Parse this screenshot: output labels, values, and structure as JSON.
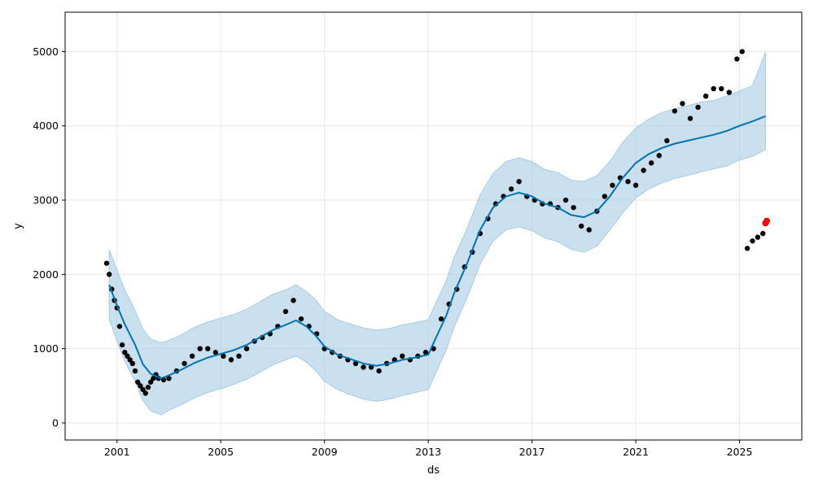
{
  "chart_data": {
    "type": "line",
    "title": "",
    "xlabel": "ds",
    "ylabel": "y",
    "xlim": [
      1999.0,
      2027.4
    ],
    "ylim": [
      -230,
      5530
    ],
    "x_ticks": [
      {
        "value": 2001,
        "label": "2001"
      },
      {
        "value": 2005,
        "label": "2005"
      },
      {
        "value": 2009,
        "label": "2009"
      },
      {
        "value": 2013,
        "label": "2013"
      },
      {
        "value": 2017,
        "label": "2017"
      },
      {
        "value": 2021,
        "label": "2021"
      },
      {
        "value": 2025,
        "label": "2025"
      }
    ],
    "y_ticks": [
      {
        "value": 0,
        "label": "0"
      },
      {
        "value": 1000,
        "label": "1000"
      },
      {
        "value": 2000,
        "label": "2000"
      },
      {
        "value": 3000,
        "label": "3000"
      },
      {
        "value": 4000,
        "label": "4000"
      },
      {
        "value": 5000,
        "label": "5000"
      }
    ],
    "grid": true,
    "colors": {
      "observed": "#000000",
      "forecast": "#0072B2",
      "interval": "#A6CBE3",
      "highlight": "#FF0000"
    },
    "series": [
      {
        "kind": "forecast",
        "x": [
          2000.7,
          2001.0,
          2001.3,
          2001.7,
          2002.0,
          2002.3,
          2002.7,
          2003.0,
          2003.5,
          2004.0,
          2004.5,
          2005.0,
          2005.5,
          2006.0,
          2006.5,
          2007.0,
          2007.5,
          2007.9,
          2008.3,
          2008.7,
          2009.0,
          2009.5,
          2010.0,
          2010.5,
          2011.0,
          2011.5,
          2012.0,
          2012.5,
          2013.0,
          2013.3,
          2013.7,
          2014.0,
          2014.5,
          2015.0,
          2015.5,
          2016.0,
          2016.5,
          2017.0,
          2017.5,
          2018.0,
          2018.5,
          2019.0,
          2019.5,
          2020.0,
          2020.5,
          2021.0,
          2021.5,
          2022.0,
          2022.5,
          2023.0,
          2023.5,
          2024.0,
          2024.5,
          2025.0,
          2025.5,
          2026.0
        ],
        "y": [
          1860,
          1580,
          1330,
          1050,
          790,
          660,
          600,
          640,
          720,
          810,
          880,
          930,
          980,
          1050,
          1150,
          1250,
          1320,
          1380,
          1300,
          1160,
          1030,
          920,
          860,
          800,
          770,
          800,
          850,
          880,
          920,
          1150,
          1450,
          1750,
          2150,
          2600,
          2900,
          3050,
          3100,
          3050,
          2950,
          2900,
          2800,
          2770,
          2850,
          3050,
          3300,
          3500,
          3620,
          3700,
          3760,
          3800,
          3840,
          3880,
          3930,
          4000,
          4060,
          4130
        ]
      },
      {
        "kind": "interval",
        "x": [
          2000.7,
          2001.0,
          2001.3,
          2001.7,
          2002.0,
          2002.3,
          2002.7,
          2003.0,
          2003.5,
          2004.0,
          2004.5,
          2005.0,
          2005.5,
          2006.0,
          2006.5,
          2007.0,
          2007.5,
          2007.9,
          2008.3,
          2008.7,
          2009.0,
          2009.5,
          2010.0,
          2010.5,
          2011.0,
          2011.5,
          2012.0,
          2012.5,
          2013.0,
          2013.3,
          2013.7,
          2014.0,
          2014.5,
          2015.0,
          2015.5,
          2016.0,
          2016.5,
          2017.0,
          2017.5,
          2018.0,
          2018.5,
          2019.0,
          2019.5,
          2020.0,
          2020.5,
          2021.0,
          2021.5,
          2022.0,
          2022.5,
          2023.0,
          2023.5,
          2024.0,
          2024.5,
          2025.0,
          2025.5,
          2026.0
        ],
        "lower": [
          1400,
          1100,
          830,
          560,
          300,
          160,
          110,
          170,
          250,
          340,
          410,
          460,
          520,
          590,
          680,
          780,
          850,
          900,
          820,
          690,
          560,
          450,
          380,
          320,
          290,
          320,
          370,
          410,
          450,
          680,
          990,
          1290,
          1690,
          2140,
          2450,
          2600,
          2640,
          2590,
          2490,
          2440,
          2340,
          2300,
          2380,
          2600,
          2830,
          3030,
          3150,
          3230,
          3290,
          3330,
          3380,
          3420,
          3460,
          3540,
          3590,
          3680
        ],
        "upper": [
          2330,
          2060,
          1790,
          1510,
          1260,
          1130,
          1080,
          1110,
          1190,
          1290,
          1360,
          1410,
          1460,
          1530,
          1630,
          1730,
          1790,
          1860,
          1770,
          1640,
          1500,
          1390,
          1330,
          1280,
          1250,
          1270,
          1320,
          1350,
          1390,
          1620,
          1920,
          2230,
          2620,
          3070,
          3360,
          3520,
          3570,
          3520,
          3410,
          3370,
          3270,
          3250,
          3330,
          3520,
          3780,
          3970,
          4090,
          4180,
          4230,
          4270,
          4320,
          4340,
          4400,
          4470,
          4540,
          4990
        ]
      },
      {
        "kind": "observed",
        "x": [
          2000.6,
          2000.7,
          2000.8,
          2000.9,
          2001.0,
          2001.1,
          2001.2,
          2001.3,
          2001.4,
          2001.5,
          2001.6,
          2001.7,
          2001.8,
          2001.9,
          2002.0,
          2002.1,
          2002.2,
          2002.3,
          2002.4,
          2002.5,
          2002.6,
          2002.8,
          2003.0,
          2003.3,
          2003.6,
          2003.9,
          2004.2,
          2004.5,
          2004.8,
          2005.1,
          2005.4,
          2005.7,
          2006.0,
          2006.3,
          2006.6,
          2006.9,
          2007.2,
          2007.5,
          2007.8,
          2008.1,
          2008.4,
          2008.7,
          2009.0,
          2009.3,
          2009.6,
          2009.9,
          2010.2,
          2010.5,
          2010.8,
          2011.1,
          2011.4,
          2011.7,
          2012.0,
          2012.3,
          2012.6,
          2012.9,
          2013.2,
          2013.5,
          2013.8,
          2014.1,
          2014.4,
          2014.7,
          2015.0,
          2015.3,
          2015.6,
          2015.9,
          2016.2,
          2016.5,
          2016.8,
          2017.1,
          2017.4,
          2017.7,
          2018.0,
          2018.3,
          2018.6,
          2018.9,
          2019.2,
          2019.5,
          2019.8,
          2020.1,
          2020.4,
          2020.7,
          2021.0,
          2021.3,
          2021.6,
          2021.9,
          2022.2,
          2022.5,
          2022.8,
          2023.1,
          2023.4,
          2023.7,
          2024.0,
          2024.3,
          2024.6,
          2024.9,
          2025.1,
          2025.3,
          2025.5,
          2025.7,
          2025.9
        ],
        "y": [
          2150,
          2000,
          1800,
          1650,
          1550,
          1300,
          1050,
          950,
          900,
          850,
          800,
          700,
          550,
          500,
          450,
          400,
          480,
          550,
          600,
          650,
          600,
          580,
          600,
          700,
          800,
          900,
          1000,
          1000,
          950,
          900,
          850,
          900,
          1000,
          1100,
          1150,
          1200,
          1300,
          1500,
          1650,
          1400,
          1300,
          1200,
          1000,
          950,
          900,
          850,
          800,
          750,
          750,
          700,
          800,
          850,
          900,
          850,
          900,
          950,
          1000,
          1400,
          1600,
          1800,
          2100,
          2300,
          2550,
          2750,
          2950,
          3050,
          3150,
          3250,
          3050,
          3000,
          2950,
          2950,
          2900,
          3000,
          2900,
          2650,
          2600,
          2850,
          3050,
          3200,
          3300,
          3250,
          3200,
          3400,
          3500,
          3600,
          3800,
          4200,
          4300,
          4100,
          4250,
          4400,
          4500,
          4500,
          4450,
          4900,
          5000,
          2350,
          2450,
          2500,
          2550
        ]
      },
      {
        "kind": "highlight",
        "x": [
          2026.0,
          2026.05
        ],
        "y": [
          2690,
          2720
        ]
      }
    ]
  }
}
